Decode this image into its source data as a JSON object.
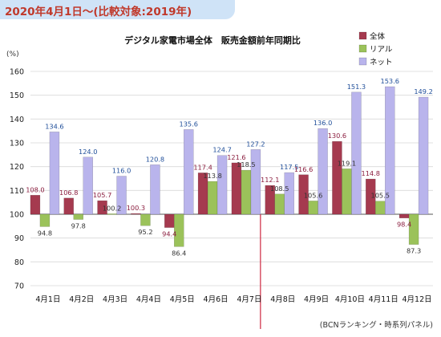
{
  "header": {
    "title": "2020年4月1日～(比較対象:2019年)"
  },
  "chart_data": {
    "type": "bar",
    "title": "デジタル家電市場全体　販売金額前年同期比",
    "ylabel": "(%)",
    "ylim": [
      70,
      160
    ],
    "yticks": [
      70,
      80,
      90,
      100,
      110,
      120,
      130,
      140,
      150,
      160
    ],
    "baseline": 100,
    "grid": true,
    "legend_position": "top-right",
    "categories": [
      "4月1日",
      "4月2日",
      "4月3日",
      "4月4日",
      "4月5日",
      "4月6日",
      "4月7日",
      "4月8日",
      "4月9日",
      "4月10日",
      "4月11日",
      "4月12日"
    ],
    "series": [
      {
        "name": "全体",
        "color": "#a53a4f",
        "label_color": "#8b1e3f",
        "values": [
          108.0,
          106.8,
          105.7,
          100.3,
          94.4,
          117.4,
          121.6,
          112.1,
          116.6,
          130.6,
          114.8,
          98.4
        ]
      },
      {
        "name": "リアル",
        "color": "#9bc25a",
        "label_color": "#333333",
        "values": [
          94.8,
          97.8,
          100.2,
          95.2,
          86.4,
          113.8,
          118.5,
          108.5,
          105.6,
          119.1,
          105.5,
          87.3
        ]
      },
      {
        "name": "ネット",
        "color": "#b9b4ec",
        "label_color": "#1f4e99",
        "values": [
          134.6,
          124.0,
          116.0,
          120.8,
          135.6,
          124.7,
          127.2,
          117.5,
          136.0,
          151.3,
          153.6,
          149.2
        ]
      }
    ],
    "source": "(BCNランキング・時系列パネル)"
  }
}
